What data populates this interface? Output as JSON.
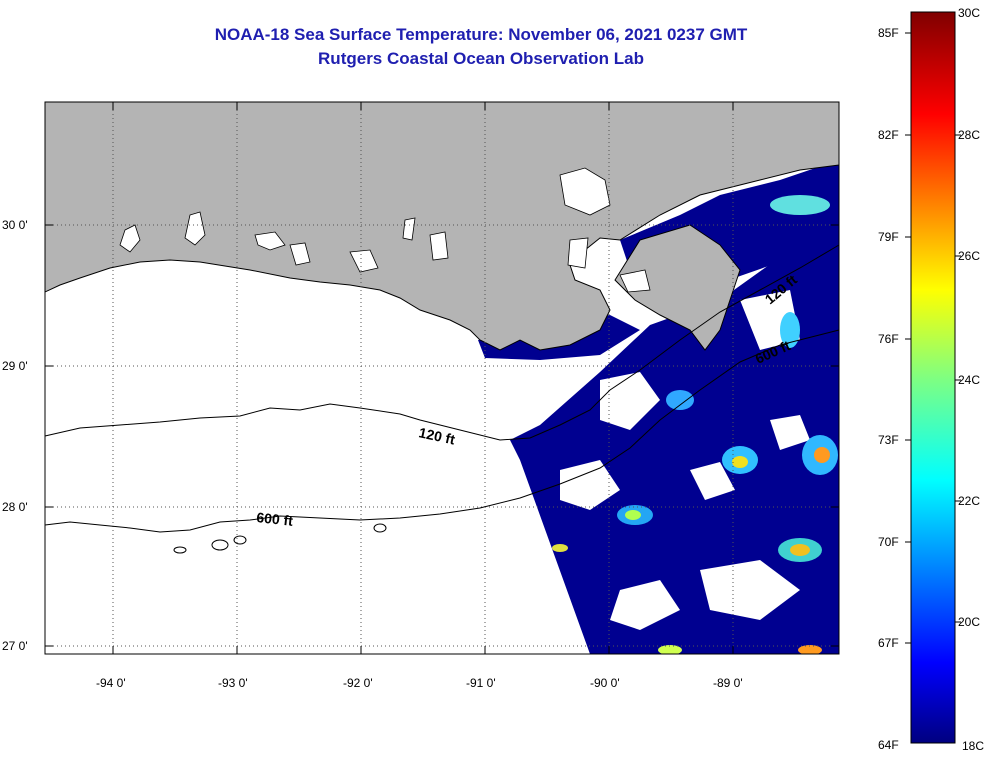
{
  "title": {
    "line1": "NOAA-18 Sea Surface Temperature:  November 06, 2021 0237 GMT",
    "line2": "Rutgers Coastal Ocean Observation Lab"
  },
  "map": {
    "region": "Northern Gulf of Mexico / Louisiana coast",
    "lon_labels": [
      "-94 0'",
      "-93 0'",
      "-92 0'",
      "-91 0'",
      "-90 0'",
      "-89 0'"
    ],
    "lat_labels": [
      "30 0'",
      "29 0'",
      "28 0'",
      "27 0'"
    ],
    "contours": [
      {
        "label": "120 ft"
      },
      {
        "label": "600 ft"
      },
      {
        "label": "120 ft",
        "note": "east side, rotated"
      },
      {
        "label": "600 ft",
        "note": "east side, rotated"
      }
    ],
    "colors": {
      "land": "#b4b4b4",
      "water_cloud": "#ffffff",
      "cold": "#000090",
      "warm": "#ffee00"
    }
  },
  "colorbar": {
    "fahrenheit_labels": [
      "85F",
      "82F",
      "79F",
      "76F",
      "73F",
      "70F",
      "67F",
      "64F"
    ],
    "celsius_labels": [
      "30C",
      "28C",
      "26C",
      "24C",
      "22C",
      "20C",
      "18C"
    ]
  }
}
